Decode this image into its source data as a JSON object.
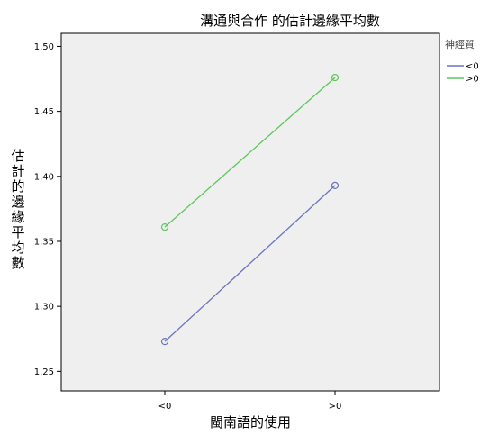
{
  "chart_data": {
    "type": "line",
    "title": "溝通與合作 的估計邊緣平均數",
    "xlabel": "閩南語的使用",
    "ylabel": "估計的邊緣平均數",
    "categories": [
      "<0",
      ">0"
    ],
    "series": [
      {
        "name": "<0",
        "values": [
          1.273,
          1.393
        ],
        "color": "#6b74c0"
      },
      {
        "name": ">0",
        "values": [
          1.361,
          1.476
        ],
        "color": "#5cc85c"
      }
    ],
    "ylim": [
      1.235,
      1.51
    ],
    "yticks": [
      1.25,
      1.3,
      1.35,
      1.4,
      1.45,
      1.5
    ],
    "ytick_labels": [
      "1.25",
      "1.30",
      "1.35",
      "1.40",
      "1.45",
      "1.50"
    ],
    "grid": false,
    "plot_background": "#efefef",
    "legend": {
      "title": "神經質",
      "position": "right"
    }
  }
}
